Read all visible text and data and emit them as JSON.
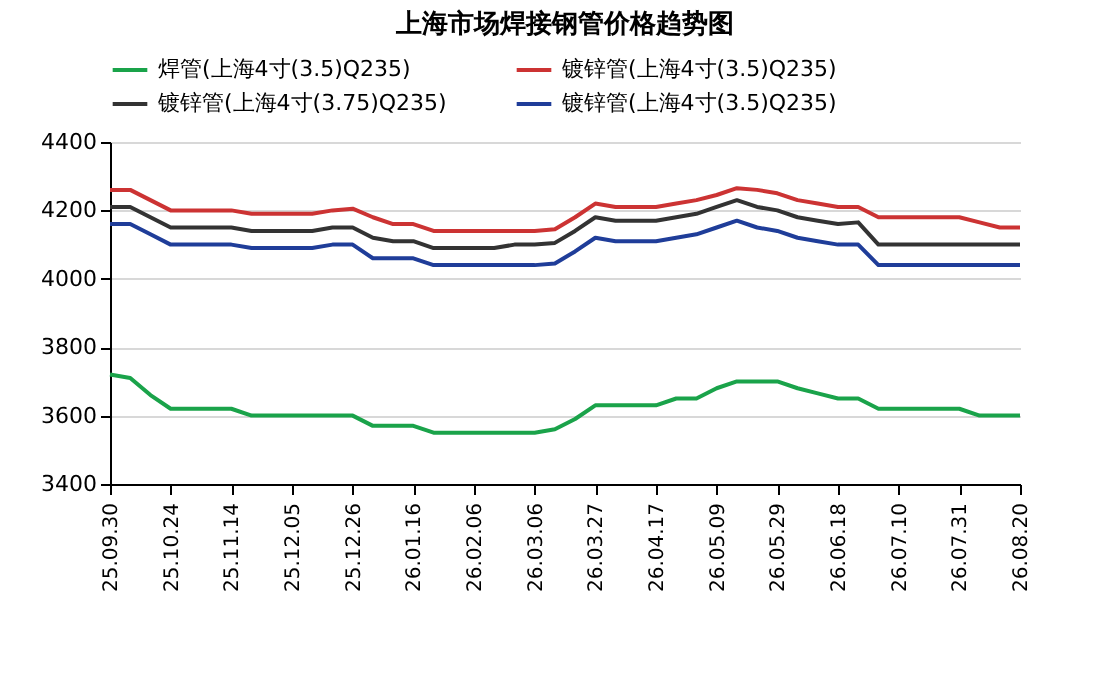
{
  "chart_data": {
    "type": "line",
    "title": "上海市场焊接钢管价格趋势图",
    "categories": [
      "25.09.30",
      null,
      null,
      "25.10.24",
      null,
      null,
      "25.11.14",
      null,
      null,
      "25.12.05",
      null,
      null,
      "25.12.26",
      null,
      null,
      "26.01.16",
      null,
      null,
      "26.02.06",
      null,
      null,
      "26.03.06",
      null,
      null,
      "26.03.27",
      null,
      null,
      "26.04.17",
      null,
      null,
      "26.05.09",
      null,
      null,
      "26.05.29",
      null,
      null,
      "26.06.18",
      null,
      null,
      "26.07.10",
      null,
      null,
      "26.07.31",
      null,
      null,
      "26.08.20"
    ],
    "series": [
      {
        "name": "焊管(上海4寸(3.5)Q235)",
        "color": "#1aa34a",
        "values": [
          3720,
          3710,
          3660,
          3620,
          3620,
          3620,
          3620,
          3600,
          3600,
          3600,
          3600,
          3600,
          3600,
          3570,
          3570,
          3570,
          3550,
          3550,
          3550,
          3550,
          3550,
          3550,
          3560,
          3590,
          3630,
          3630,
          3630,
          3630,
          3650,
          3650,
          3680,
          3700,
          3700,
          3700,
          3680,
          3665,
          3650,
          3650,
          3620,
          3620,
          3620,
          3620,
          3620,
          3600,
          3600,
          3600
        ]
      },
      {
        "name": "镀锌管(上海4寸(3.5)Q235)",
        "color": "#cc3333",
        "values": [
          4260,
          4260,
          4230,
          4200,
          4200,
          4200,
          4200,
          4190,
          4190,
          4190,
          4190,
          4200,
          4205,
          4180,
          4160,
          4160,
          4140,
          4140,
          4140,
          4140,
          4140,
          4140,
          4145,
          4180,
          4220,
          4210,
          4210,
          4210,
          4220,
          4230,
          4245,
          4265,
          4260,
          4250,
          4230,
          4220,
          4210,
          4210,
          4180,
          4180,
          4180,
          4180,
          4180,
          4165,
          4150,
          4150
        ]
      },
      {
        "name": "镀锌管(上海4寸(3.75)Q235)",
        "color": "#333333",
        "values": [
          4210,
          4210,
          4180,
          4150,
          4150,
          4150,
          4150,
          4140,
          4140,
          4140,
          4140,
          4150,
          4150,
          4120,
          4110,
          4110,
          4090,
          4090,
          4090,
          4090,
          4100,
          4100,
          4105,
          4140,
          4180,
          4170,
          4170,
          4170,
          4180,
          4190,
          4210,
          4230,
          4210,
          4200,
          4180,
          4170,
          4160,
          4165,
          4100,
          4100,
          4100,
          4100,
          4100,
          4100,
          4100,
          4100
        ]
      },
      {
        "name": "镀锌管(上海4寸(3.5)Q235)",
        "color": "#1f3d99",
        "values": [
          4160,
          4160,
          4130,
          4100,
          4100,
          4100,
          4100,
          4090,
          4090,
          4090,
          4090,
          4100,
          4100,
          4060,
          4060,
          4060,
          4040,
          4040,
          4040,
          4040,
          4040,
          4040,
          4045,
          4080,
          4120,
          4110,
          4110,
          4110,
          4120,
          4130,
          4150,
          4170,
          4150,
          4140,
          4120,
          4110,
          4100,
          4100,
          4040,
          4040,
          4040,
          4040,
          4040,
          4040,
          4040,
          4040
        ]
      }
    ],
    "ylim": [
      3400,
      4400
    ],
    "yticks": [
      3400,
      3600,
      3800,
      4000,
      4200,
      4400
    ],
    "grid": "y",
    "legend": "top",
    "marker": "none",
    "line_style": "solid"
  }
}
